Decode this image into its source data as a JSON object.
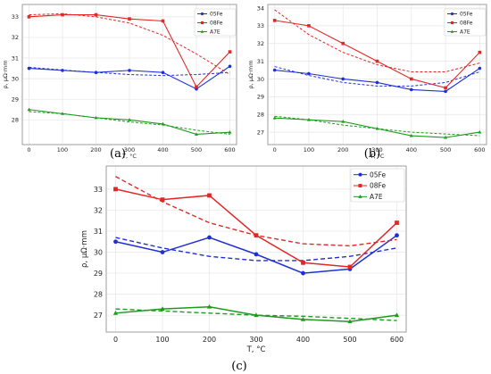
{
  "colors": {
    "05Fe": "#1f2fd6",
    "08Fe": "#e32626",
    "A7E": "#1e9a1e"
  },
  "chart_data": [
    {
      "type": "line",
      "panel_label": "(a)",
      "xlabel": "T, °C",
      "ylabel": "ρ, μΩ·mm",
      "x": [
        0,
        100,
        200,
        300,
        400,
        500,
        600
      ],
      "xlim": [
        -20,
        620
      ],
      "ylim": [
        26.8,
        33.6
      ],
      "xticks": [
        0,
        100,
        200,
        300,
        400,
        500,
        600
      ],
      "yticks": [
        28,
        29,
        30,
        31,
        32,
        33
      ],
      "grid": true,
      "legend": "top-right",
      "series": [
        {
          "name": "05Fe",
          "marker": "circle",
          "values": [
            30.5,
            30.4,
            30.3,
            30.4,
            30.3,
            29.5,
            30.6
          ],
          "trend": [
            30.55,
            30.42,
            30.3,
            30.2,
            30.15,
            30.2,
            30.3
          ]
        },
        {
          "name": "08Fe",
          "marker": "square",
          "values": [
            33.0,
            33.1,
            33.1,
            32.9,
            32.8,
            29.6,
            31.3
          ],
          "trend": [
            33.1,
            33.15,
            33.0,
            32.7,
            32.1,
            31.2,
            30.2
          ]
        },
        {
          "name": "A7E",
          "marker": "triangle",
          "values": [
            28.5,
            28.3,
            28.1,
            28.0,
            27.8,
            27.3,
            27.4
          ],
          "trend": [
            28.4,
            28.3,
            28.1,
            27.9,
            27.75,
            27.5,
            27.3
          ]
        }
      ]
    },
    {
      "type": "line",
      "panel_label": "(b)",
      "xlabel": "T, °C",
      "ylabel": "ρ, μΩ·mm",
      "x": [
        0,
        100,
        200,
        300,
        400,
        500,
        600
      ],
      "xlim": [
        -20,
        620
      ],
      "ylim": [
        26.3,
        34.2
      ],
      "xticks": [
        0,
        100,
        200,
        300,
        400,
        500,
        600
      ],
      "yticks": [
        27,
        28,
        29,
        30,
        31,
        32,
        33,
        34
      ],
      "grid": true,
      "legend": "top-right",
      "series": [
        {
          "name": "05Fe",
          "marker": "circle",
          "values": [
            30.5,
            30.3,
            30.0,
            29.8,
            29.4,
            29.3,
            30.6
          ],
          "trend": [
            30.7,
            30.2,
            29.8,
            29.6,
            29.6,
            29.8,
            30.4
          ]
        },
        {
          "name": "08Fe",
          "marker": "square",
          "values": [
            33.3,
            33.0,
            32.0,
            31.0,
            30.0,
            29.5,
            31.5
          ],
          "trend": [
            33.9,
            32.5,
            31.5,
            30.8,
            30.4,
            30.4,
            30.9
          ]
        },
        {
          "name": "A7E",
          "marker": "triangle",
          "values": [
            27.8,
            27.7,
            27.6,
            27.2,
            26.8,
            26.7,
            27.0
          ],
          "trend": [
            27.9,
            27.7,
            27.4,
            27.2,
            27.0,
            26.9,
            26.8
          ]
        }
      ]
    },
    {
      "type": "line",
      "panel_label": "(c)",
      "xlabel": "T, °C",
      "ylabel": "ρ, μΩ·mm",
      "x": [
        0,
        100,
        200,
        300,
        400,
        500,
        600
      ],
      "xlim": [
        -20,
        620
      ],
      "ylim": [
        26.2,
        34.1
      ],
      "xticks": [
        0,
        100,
        200,
        300,
        400,
        500,
        600
      ],
      "yticks": [
        27,
        28,
        29,
        30,
        31,
        32,
        33
      ],
      "grid": true,
      "legend": "top-right",
      "series": [
        {
          "name": "05Fe",
          "marker": "circle",
          "values": [
            30.5,
            30.0,
            30.7,
            29.9,
            29.0,
            29.2,
            30.8
          ],
          "trend": [
            30.7,
            30.2,
            29.8,
            29.6,
            29.6,
            29.8,
            30.2
          ]
        },
        {
          "name": "08Fe",
          "marker": "square",
          "values": [
            33.0,
            32.5,
            32.7,
            30.8,
            29.5,
            29.3,
            31.4
          ],
          "trend": [
            33.6,
            32.4,
            31.4,
            30.8,
            30.4,
            30.3,
            30.6
          ]
        },
        {
          "name": "A7E",
          "marker": "triangle",
          "values": [
            27.1,
            27.3,
            27.4,
            27.0,
            26.8,
            26.7,
            27.0
          ],
          "trend": [
            27.3,
            27.2,
            27.1,
            27.0,
            26.95,
            26.85,
            26.75
          ]
        }
      ]
    }
  ]
}
